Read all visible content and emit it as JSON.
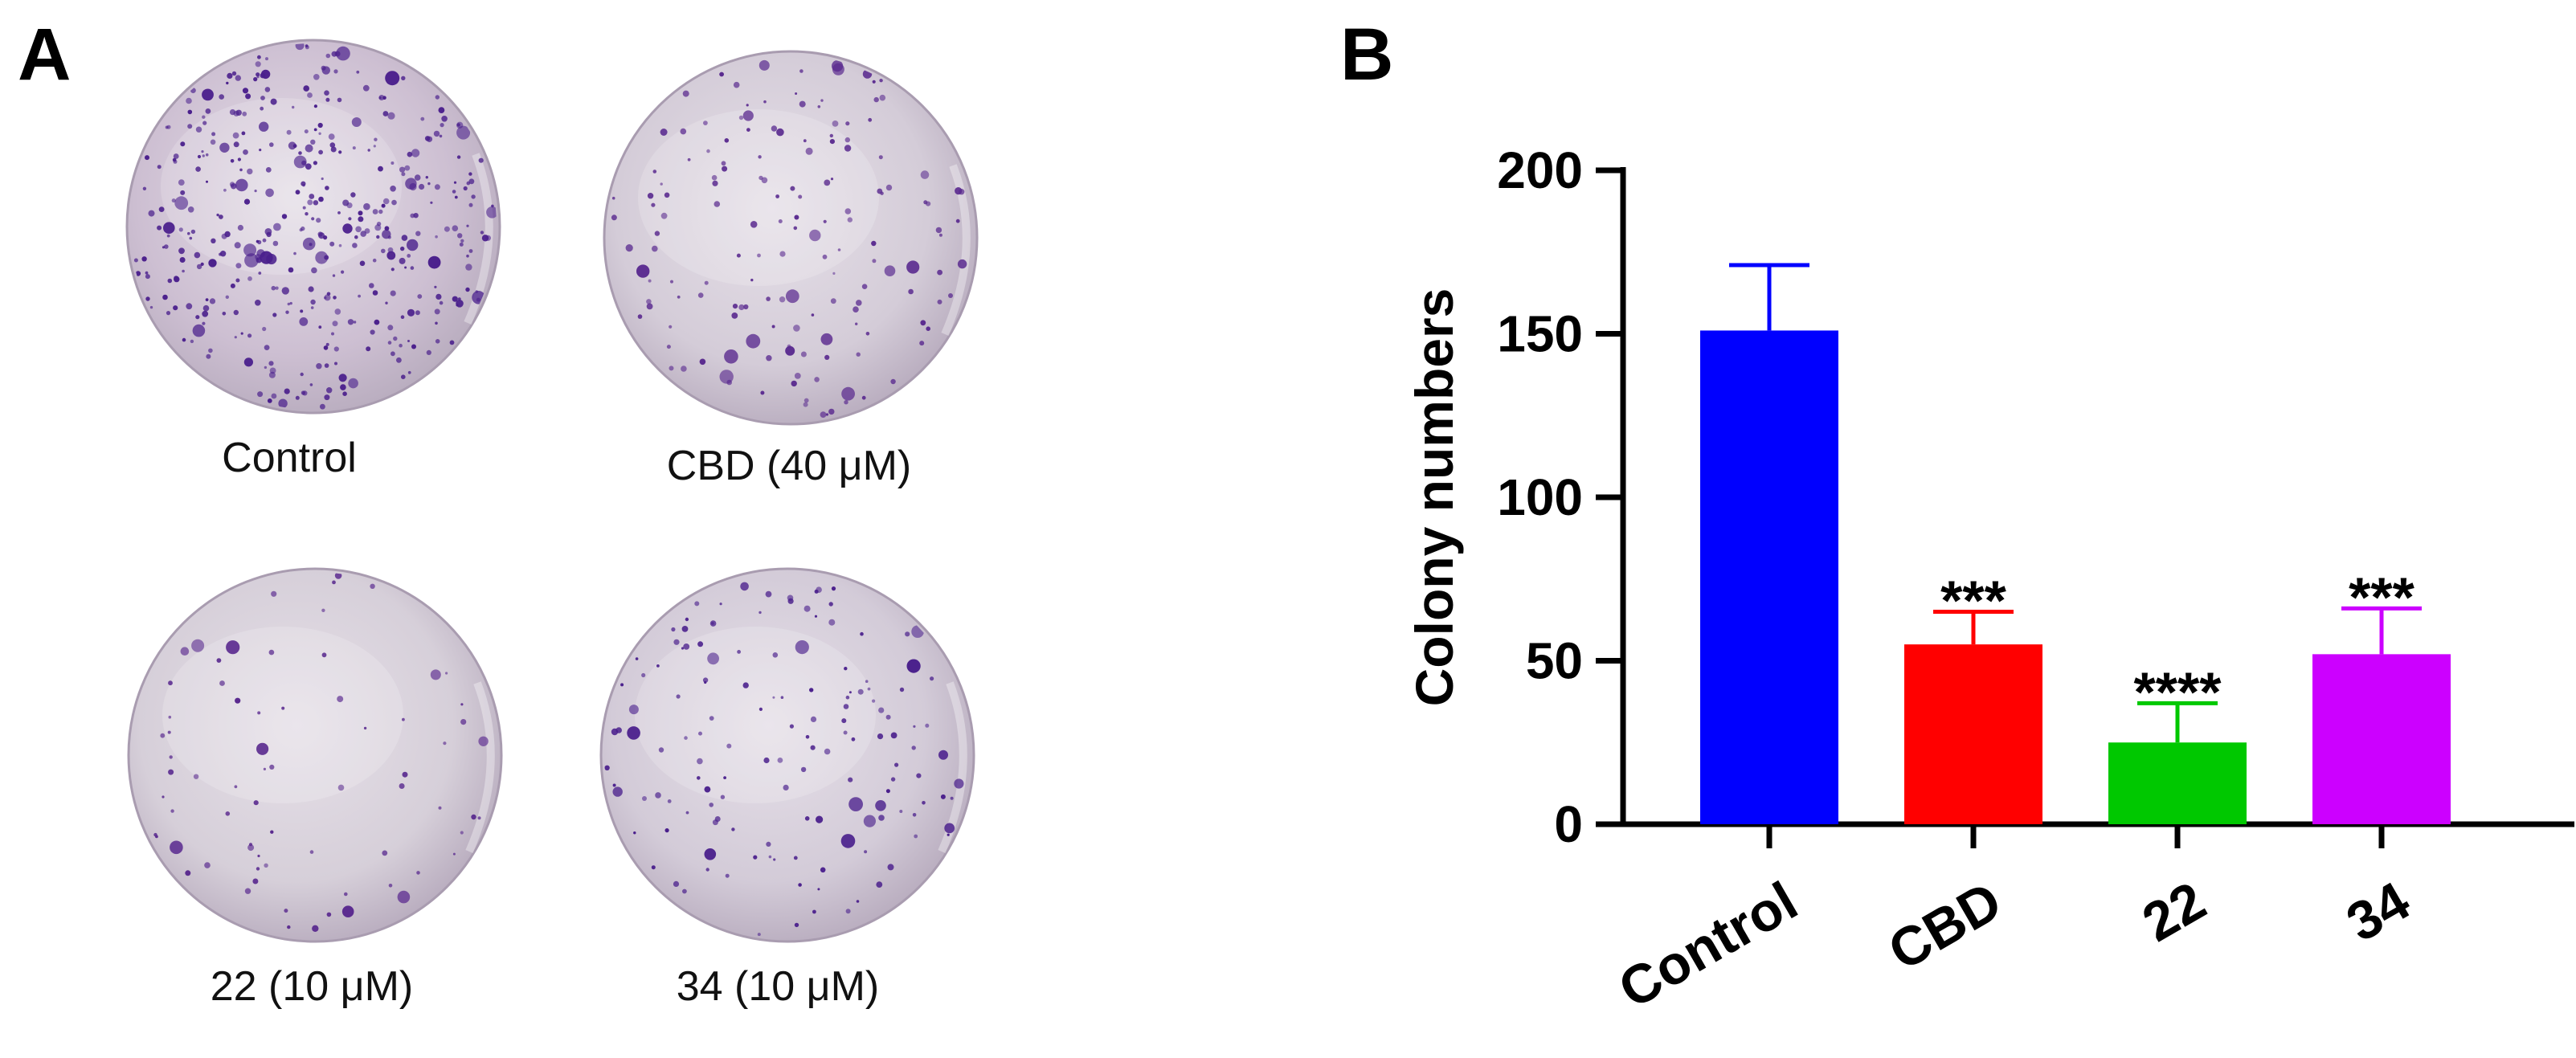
{
  "panel_a": {
    "letter": "A",
    "dishes": [
      {
        "label": "Control",
        "colony_density": 1.0,
        "tint": "#cdbfd2",
        "colony_color": "#4a1f8c"
      },
      {
        "label": "CBD (40 μM)",
        "colony_density": 0.37,
        "tint": "#d4ccd8",
        "colony_color": "#5a2a8f"
      },
      {
        "label": "22 (10 μM)",
        "colony_density": 0.17,
        "tint": "#d6cfd9",
        "colony_color": "#5a2a8f"
      },
      {
        "label": "34 (10 μM)",
        "colony_density": 0.34,
        "tint": "#d3cbd8",
        "colony_color": "#4a1f8c"
      }
    ]
  },
  "panel_b": {
    "letter": "B"
  },
  "chart_data": {
    "type": "bar",
    "title": "",
    "xlabel": "",
    "ylabel": "Colony numbers",
    "ylim": [
      0,
      200
    ],
    "yticks": [
      0,
      50,
      100,
      150,
      200
    ],
    "categories": [
      "Control",
      "CBD",
      "22",
      "34"
    ],
    "values": [
      151,
      55,
      25,
      52
    ],
    "errors": [
      20,
      10,
      12,
      14
    ],
    "significance": [
      "",
      "***",
      "****",
      "***"
    ],
    "colors": [
      "#0000ff",
      "#ff0000",
      "#00c800",
      "#cc00ff"
    ],
    "grid": false,
    "legend": "none"
  }
}
